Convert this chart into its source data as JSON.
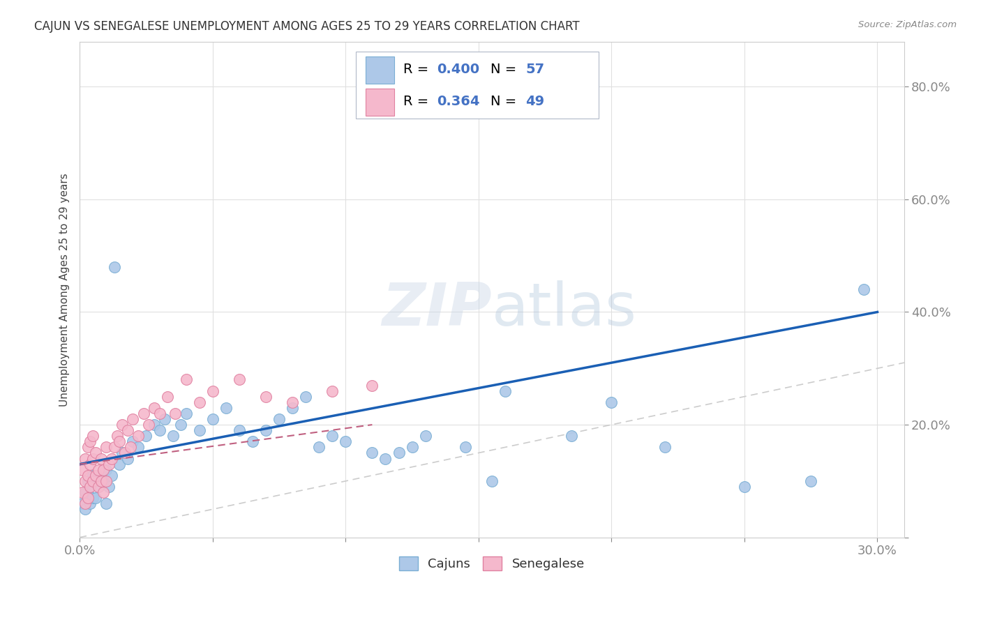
{
  "title": "CAJUN VS SENEGALESE UNEMPLOYMENT AMONG AGES 25 TO 29 YEARS CORRELATION CHART",
  "source": "Source: ZipAtlas.com",
  "ylabel": "Unemployment Among Ages 25 to 29 years",
  "xlim": [
    0.0,
    0.31
  ],
  "ylim": [
    0.0,
    0.88
  ],
  "x_tick_positions": [
    0.0,
    0.05,
    0.1,
    0.15,
    0.2,
    0.25,
    0.3
  ],
  "x_tick_labels": [
    "0.0%",
    "",
    "",
    "",
    "",
    "",
    "30.0%"
  ],
  "y_tick_positions": [
    0.0,
    0.2,
    0.4,
    0.6,
    0.8
  ],
  "y_tick_labels": [
    "",
    "20.0%",
    "40.0%",
    "60.0%",
    "80.0%"
  ],
  "cajuns_color": "#adc8e8",
  "cajuns_edge_color": "#7aaed4",
  "senegalese_color": "#f5b8cc",
  "senegalese_edge_color": "#e080a0",
  "regression_cajuns_color": "#1a5fb4",
  "regression_senegalese_color": "#c06080",
  "diagonal_color": "#cccccc",
  "R_cajuns": 0.4,
  "N_cajuns": 57,
  "R_senegalese": 0.364,
  "N_senegalese": 49,
  "legend_cajuns_label": "Cajuns",
  "legend_senegalese_label": "Senegalese",
  "watermark": "ZIPatlas",
  "cajuns_x": [
    0.001,
    0.002,
    0.002,
    0.003,
    0.003,
    0.004,
    0.004,
    0.005,
    0.005,
    0.006,
    0.006,
    0.007,
    0.008,
    0.009,
    0.01,
    0.01,
    0.011,
    0.012,
    0.013,
    0.015,
    0.016,
    0.018,
    0.02,
    0.022,
    0.025,
    0.028,
    0.03,
    0.032,
    0.035,
    0.038,
    0.04,
    0.045,
    0.05,
    0.055,
    0.06,
    0.065,
    0.07,
    0.075,
    0.08,
    0.085,
    0.09,
    0.095,
    0.1,
    0.11,
    0.115,
    0.12,
    0.125,
    0.13,
    0.145,
    0.155,
    0.16,
    0.185,
    0.2,
    0.22,
    0.25,
    0.275,
    0.295
  ],
  "cajuns_y": [
    0.06,
    0.08,
    0.05,
    0.07,
    0.1,
    0.06,
    0.09,
    0.07,
    0.11,
    0.07,
    0.1,
    0.09,
    0.11,
    0.1,
    0.06,
    0.12,
    0.09,
    0.11,
    0.48,
    0.13,
    0.15,
    0.14,
    0.17,
    0.16,
    0.18,
    0.2,
    0.19,
    0.21,
    0.18,
    0.2,
    0.22,
    0.19,
    0.21,
    0.23,
    0.19,
    0.17,
    0.19,
    0.21,
    0.23,
    0.25,
    0.16,
    0.18,
    0.17,
    0.15,
    0.14,
    0.15,
    0.16,
    0.18,
    0.16,
    0.1,
    0.26,
    0.18,
    0.24,
    0.16,
    0.09,
    0.1,
    0.44
  ],
  "senegalese_x": [
    0.001,
    0.001,
    0.002,
    0.002,
    0.002,
    0.003,
    0.003,
    0.003,
    0.004,
    0.004,
    0.004,
    0.005,
    0.005,
    0.005,
    0.006,
    0.006,
    0.007,
    0.007,
    0.008,
    0.008,
    0.009,
    0.009,
    0.01,
    0.01,
    0.011,
    0.012,
    0.013,
    0.014,
    0.015,
    0.016,
    0.017,
    0.018,
    0.019,
    0.02,
    0.022,
    0.024,
    0.026,
    0.028,
    0.03,
    0.033,
    0.036,
    0.04,
    0.045,
    0.05,
    0.06,
    0.07,
    0.08,
    0.095,
    0.11
  ],
  "senegalese_y": [
    0.08,
    0.12,
    0.06,
    0.1,
    0.14,
    0.07,
    0.11,
    0.16,
    0.09,
    0.13,
    0.17,
    0.1,
    0.14,
    0.18,
    0.11,
    0.15,
    0.09,
    0.12,
    0.1,
    0.14,
    0.08,
    0.12,
    0.1,
    0.16,
    0.13,
    0.14,
    0.16,
    0.18,
    0.17,
    0.2,
    0.15,
    0.19,
    0.16,
    0.21,
    0.18,
    0.22,
    0.2,
    0.23,
    0.22,
    0.25,
    0.22,
    0.28,
    0.24,
    0.26,
    0.28,
    0.25,
    0.24,
    0.26,
    0.27
  ],
  "background_color": "#ffffff",
  "grid_color": "#e0e0e0"
}
